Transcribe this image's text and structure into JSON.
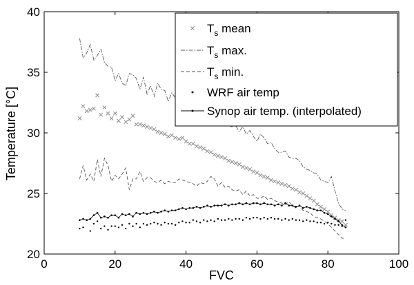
{
  "chart_data": {
    "type": "scatter",
    "title": "",
    "xlabel": "FVC",
    "ylabel": "Temperature [°C]",
    "xlim": [
      0,
      100
    ],
    "ylim": [
      20,
      40
    ],
    "xticks": [
      "0",
      "20",
      "40",
      "60",
      "80",
      "100"
    ],
    "yticks": [
      "20",
      "25",
      "30",
      "35",
      "40"
    ],
    "grid": false,
    "legend_position": "top-right",
    "colors": {
      "ts_mean": "#8c8c8c",
      "ts_max": "#555555",
      "ts_min": "#555555",
      "wrf": "#000000",
      "synop": "#000000"
    },
    "x": [
      10,
      11,
      12,
      13,
      14,
      15,
      16,
      17,
      18,
      19,
      20,
      21,
      22,
      23,
      24,
      25,
      26,
      27,
      28,
      29,
      30,
      31,
      32,
      33,
      34,
      35,
      36,
      37,
      38,
      39,
      40,
      41,
      42,
      43,
      44,
      45,
      46,
      47,
      48,
      49,
      50,
      51,
      52,
      53,
      54,
      55,
      56,
      57,
      58,
      59,
      60,
      61,
      62,
      63,
      64,
      65,
      66,
      67,
      68,
      69,
      70,
      71,
      72,
      73,
      74,
      75,
      76,
      77,
      78,
      79,
      80,
      81,
      82,
      83,
      84,
      85
    ],
    "series": [
      {
        "name": "T",
        "name_sub": "s",
        "name_rest": " mean",
        "key": "ts_mean",
        "style": "x",
        "values": [
          31.2,
          32.2,
          31.8,
          31.9,
          32.0,
          33.1,
          31.5,
          32.1,
          31.6,
          31.2,
          31.6,
          31.0,
          31.3,
          30.9,
          31.1,
          31.4,
          30.7,
          30.7,
          30.6,
          30.5,
          30.4,
          30.3,
          30.1,
          30.0,
          29.9,
          29.7,
          29.8,
          29.6,
          29.5,
          29.6,
          29.3,
          29.1,
          29.1,
          28.9,
          28.8,
          28.7,
          28.5,
          28.4,
          28.2,
          28.1,
          28.0,
          27.9,
          27.7,
          27.6,
          27.5,
          27.4,
          27.2,
          27.1,
          27.0,
          26.8,
          26.7,
          26.5,
          26.4,
          26.3,
          26.1,
          26.0,
          25.9,
          25.8,
          25.7,
          25.6,
          25.4,
          25.3,
          25.1,
          25.0,
          24.8,
          24.6,
          24.4,
          24.1,
          23.9,
          23.7,
          23.5,
          23.2,
          23.0,
          22.8,
          22.7,
          22.4
        ]
      },
      {
        "name": "T",
        "name_sub": "s",
        "name_rest": " max.",
        "key": "ts_max",
        "style": "dashdot",
        "values": [
          37.8,
          36.2,
          36.6,
          37.3,
          36.0,
          36.4,
          36.9,
          35.8,
          35.5,
          35.4,
          34.3,
          34.9,
          34.1,
          33.9,
          34.9,
          34.8,
          34.5,
          33.6,
          34.6,
          33.2,
          33.9,
          33.0,
          34.1,
          33.6,
          33.5,
          32.6,
          33.3,
          32.9,
          32.9,
          31.7,
          31.7,
          32.6,
          31.4,
          31.9,
          31.4,
          30.7,
          30.8,
          30.9,
          30.9,
          31.0,
          30.9,
          30.8,
          30.6,
          30.5,
          30.6,
          30.1,
          30.5,
          29.9,
          30.2,
          29.7,
          29.3,
          29.9,
          29.6,
          29.1,
          29.2,
          28.7,
          28.4,
          28.4,
          28.5,
          28.0,
          27.9,
          27.9,
          27.7,
          27.2,
          27.0,
          26.9,
          26.7,
          26.6,
          26.1,
          26.0,
          25.9,
          26.4,
          25.2,
          24.2,
          23.7,
          23.6
        ]
      },
      {
        "name": "T",
        "name_sub": "s",
        "name_rest": " min.",
        "key": "ts_min",
        "style": "dash",
        "values": [
          26.2,
          27.3,
          26.1,
          26.6,
          26.0,
          27.8,
          26.4,
          27.9,
          27.3,
          26.0,
          26.5,
          26.2,
          26.6,
          27.1,
          25.3,
          26.2,
          26.2,
          26.8,
          26.0,
          26.3,
          26.3,
          26.0,
          25.9,
          26.1,
          25.8,
          26.0,
          25.9,
          25.9,
          26.2,
          26.1,
          26.0,
          25.9,
          25.8,
          25.6,
          25.9,
          25.8,
          26.0,
          26.4,
          26.2,
          25.6,
          25.9,
          25.5,
          25.6,
          25.3,
          25.2,
          25.3,
          24.9,
          25.2,
          24.8,
          24.9,
          24.6,
          24.6,
          24.8,
          24.5,
          24.6,
          24.4,
          24.3,
          24.2,
          24.1,
          24.3,
          24.0,
          23.8,
          24.0,
          23.6,
          23.5,
          23.4,
          23.1,
          23.0,
          22.9,
          22.7,
          22.5,
          22.2,
          21.9,
          21.6,
          21.3,
          21.3
        ]
      },
      {
        "name": "WRF air temp",
        "key": "wrf",
        "style": "dot",
        "values": [
          22.1,
          22.2,
          22.8,
          21.9,
          22.5,
          22.7,
          22.1,
          22.3,
          22.0,
          22.3,
          22.3,
          22.2,
          22.4,
          22.1,
          22.5,
          22.3,
          22.5,
          22.2,
          22.5,
          22.4,
          22.5,
          22.6,
          22.5,
          22.4,
          22.6,
          22.5,
          22.5,
          22.4,
          22.6,
          22.7,
          22.6,
          22.6,
          22.8,
          22.7,
          22.6,
          22.8,
          22.7,
          22.8,
          22.7,
          22.9,
          22.8,
          22.8,
          22.9,
          22.8,
          22.9,
          22.9,
          22.8,
          23.0,
          22.9,
          23.0,
          23.0,
          22.9,
          23.0,
          22.9,
          23.0,
          22.9,
          22.9,
          22.8,
          22.9,
          22.8,
          22.9,
          22.8,
          22.8,
          22.7,
          22.8,
          22.7,
          22.7,
          22.6,
          22.6,
          22.5,
          22.6,
          22.5,
          22.4,
          22.4,
          22.3,
          22.8
        ]
      },
      {
        "name": "Synop air temp. (interpolated)",
        "key": "synop",
        "style": "line-dot",
        "values": [
          22.8,
          22.9,
          22.8,
          22.9,
          23.2,
          23.4,
          23.0,
          23.1,
          23.0,
          23.2,
          23.2,
          23.0,
          23.3,
          23.2,
          23.3,
          23.1,
          23.4,
          23.3,
          23.4,
          23.3,
          23.4,
          23.5,
          23.4,
          23.5,
          23.6,
          23.5,
          23.6,
          23.6,
          23.7,
          23.8,
          23.7,
          23.8,
          23.8,
          23.9,
          23.8,
          23.9,
          24.0,
          23.9,
          24.0,
          24.0,
          24.0,
          24.1,
          24.0,
          24.1,
          24.1,
          24.2,
          24.1,
          24.2,
          24.1,
          24.2,
          24.2,
          24.1,
          24.2,
          24.1,
          24.1,
          24.0,
          24.1,
          24.0,
          24.2,
          24.0,
          24.0,
          23.9,
          24.0,
          23.8,
          23.9,
          23.8,
          23.7,
          23.6,
          23.6,
          23.4,
          23.3,
          23.1,
          22.9,
          22.7,
          22.4,
          22.2
        ]
      }
    ]
  }
}
